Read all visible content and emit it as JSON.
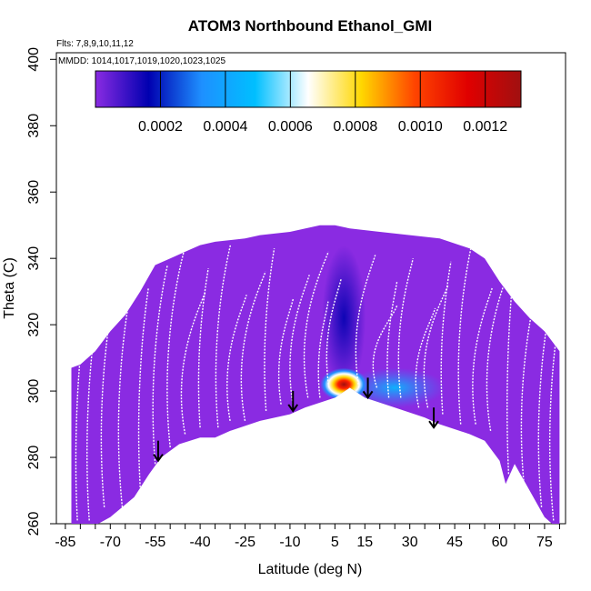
{
  "chart_data": {
    "type": "heatmap",
    "title": "ATOM3 Northbound Ethanol_GMI",
    "flights_note": "Flts: 7,8,9,10,11,12",
    "dates_note": "MMDD: 1014,1017,1019,1020,1023,1025",
    "xlabel": "Latitude (deg N)",
    "ylabel": "Theta (C)",
    "xlim": [
      -88,
      82
    ],
    "ylim": [
      260,
      402
    ],
    "x_ticks": [
      -85,
      -70,
      -55,
      -40,
      -25,
      -10,
      5,
      15,
      30,
      45,
      60,
      75
    ],
    "y_ticks": [
      260,
      280,
      300,
      320,
      340,
      360,
      380,
      400
    ],
    "colorbar": {
      "range": [
        0,
        0.00131
      ],
      "ticks": [
        0.0002,
        0.0004,
        0.0006,
        0.0008,
        0.001,
        0.0012
      ],
      "tick_labels": [
        "0.0002",
        "0.0004",
        "0.0006",
        "0.0008",
        "0.0010",
        "0.0012"
      ],
      "colors": [
        "#8a2be2",
        "#0000b0",
        "#1e90ff",
        "#00bfff",
        "#ffffff",
        "#ffd700",
        "#ff4500",
        "#e00000",
        "#a01010"
      ]
    },
    "field_upper_boundary": [
      [
        -83,
        307
      ],
      [
        -80,
        308
      ],
      [
        -75,
        312
      ],
      [
        -70,
        318
      ],
      [
        -65,
        323
      ],
      [
        -60,
        330
      ],
      [
        -55,
        338
      ],
      [
        -50,
        340
      ],
      [
        -45,
        342
      ],
      [
        -40,
        344
      ],
      [
        -35,
        345
      ],
      [
        -25,
        346
      ],
      [
        -20,
        347
      ],
      [
        -10,
        348
      ],
      [
        0,
        350
      ],
      [
        5,
        350
      ],
      [
        10,
        349
      ],
      [
        20,
        348
      ],
      [
        30,
        347
      ],
      [
        40,
        346
      ],
      [
        50,
        343
      ],
      [
        55,
        340
      ],
      [
        60,
        333
      ],
      [
        65,
        327
      ],
      [
        70,
        322
      ],
      [
        75,
        318
      ],
      [
        80,
        312
      ]
    ],
    "field_lower_boundary": [
      [
        -83,
        258
      ],
      [
        -78,
        258
      ],
      [
        -70,
        262
      ],
      [
        -62,
        268
      ],
      [
        -57,
        275
      ],
      [
        -53,
        280
      ],
      [
        -47,
        284
      ],
      [
        -40,
        286
      ],
      [
        -35,
        286
      ],
      [
        -30,
        288
      ],
      [
        -20,
        291
      ],
      [
        -10,
        293
      ],
      [
        -5,
        295
      ],
      [
        5,
        298
      ],
      [
        10,
        301
      ],
      [
        15,
        298
      ],
      [
        25,
        295
      ],
      [
        35,
        292
      ],
      [
        40,
        290
      ],
      [
        50,
        287
      ],
      [
        55,
        285
      ],
      [
        60,
        279
      ],
      [
        62,
        272
      ],
      [
        65,
        278
      ],
      [
        70,
        270
      ],
      [
        75,
        262
      ],
      [
        80,
        258
      ]
    ],
    "high_value_region": {
      "lat": 8,
      "theta": 302,
      "max_value": 0.00125
    },
    "arrows": [
      [
        -54,
        279
      ],
      [
        -9,
        294
      ],
      [
        16,
        298
      ],
      [
        38,
        289
      ]
    ]
  }
}
